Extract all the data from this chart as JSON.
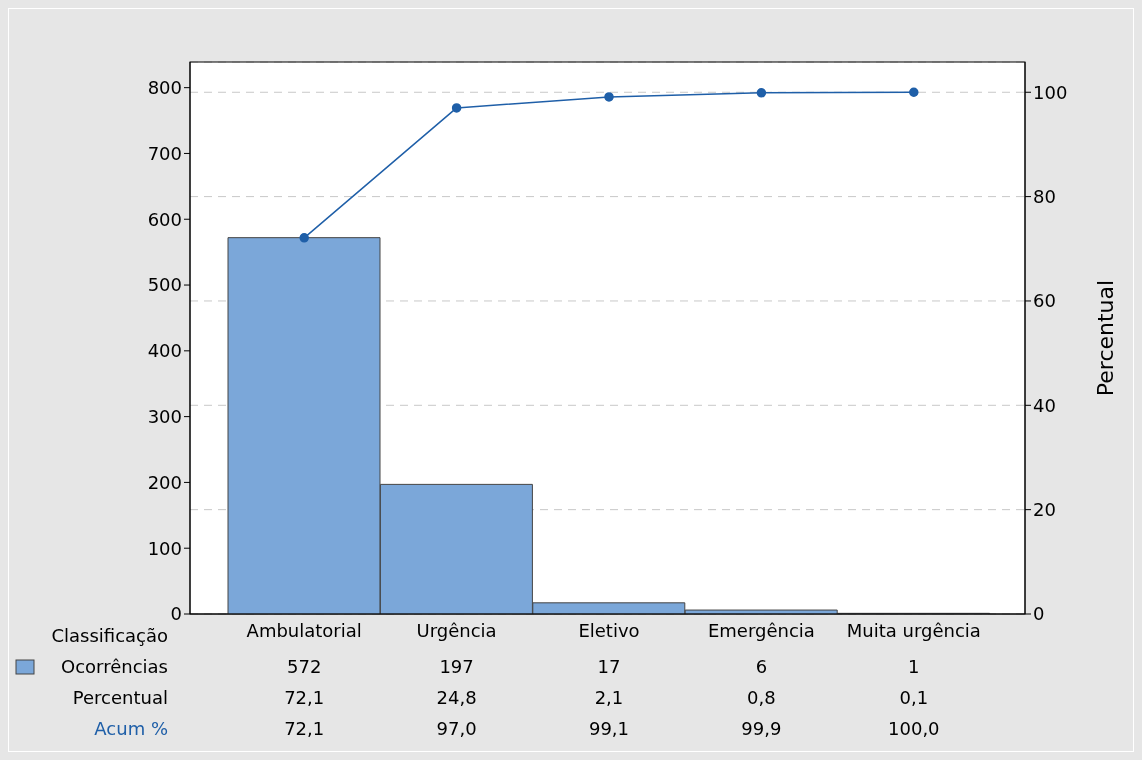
{
  "chart_data": {
    "type": "bar",
    "xlabel": "Classificação",
    "y2label": "Percentual",
    "categories": [
      "Ambulatorial",
      "Urgência",
      "Eletivo",
      "Emergência",
      "Muita urgência"
    ],
    "series": [
      {
        "name": "Ocorrências",
        "color": "#7ba7d9",
        "values": [
          572,
          197,
          17,
          6,
          1
        ],
        "value_labels": [
          "572",
          "197",
          "17",
          "6",
          "1"
        ]
      },
      {
        "name": "Acum %",
        "type": "line",
        "axis": "y2",
        "color": "#1f5fa8",
        "marker": "circle",
        "values": [
          72.1,
          97.0,
          99.1,
          99.9,
          100.0
        ],
        "value_labels": [
          "72,1",
          "97,0",
          "99,1",
          "99,9",
          "100,0"
        ]
      }
    ],
    "annotations": [
      "Percentual",
      "72,1",
      "24,8",
      "2,1",
      "0,8",
      "0,1"
    ],
    "ylim": [
      0,
      839
    ],
    "yticks": [
      0,
      100,
      200,
      300,
      400,
      500,
      600,
      700,
      800
    ],
    "y2lim": [
      0,
      105.8
    ],
    "y2ticks": [
      0,
      20,
      40,
      60,
      80,
      100
    ],
    "grid": "y2"
  }
}
